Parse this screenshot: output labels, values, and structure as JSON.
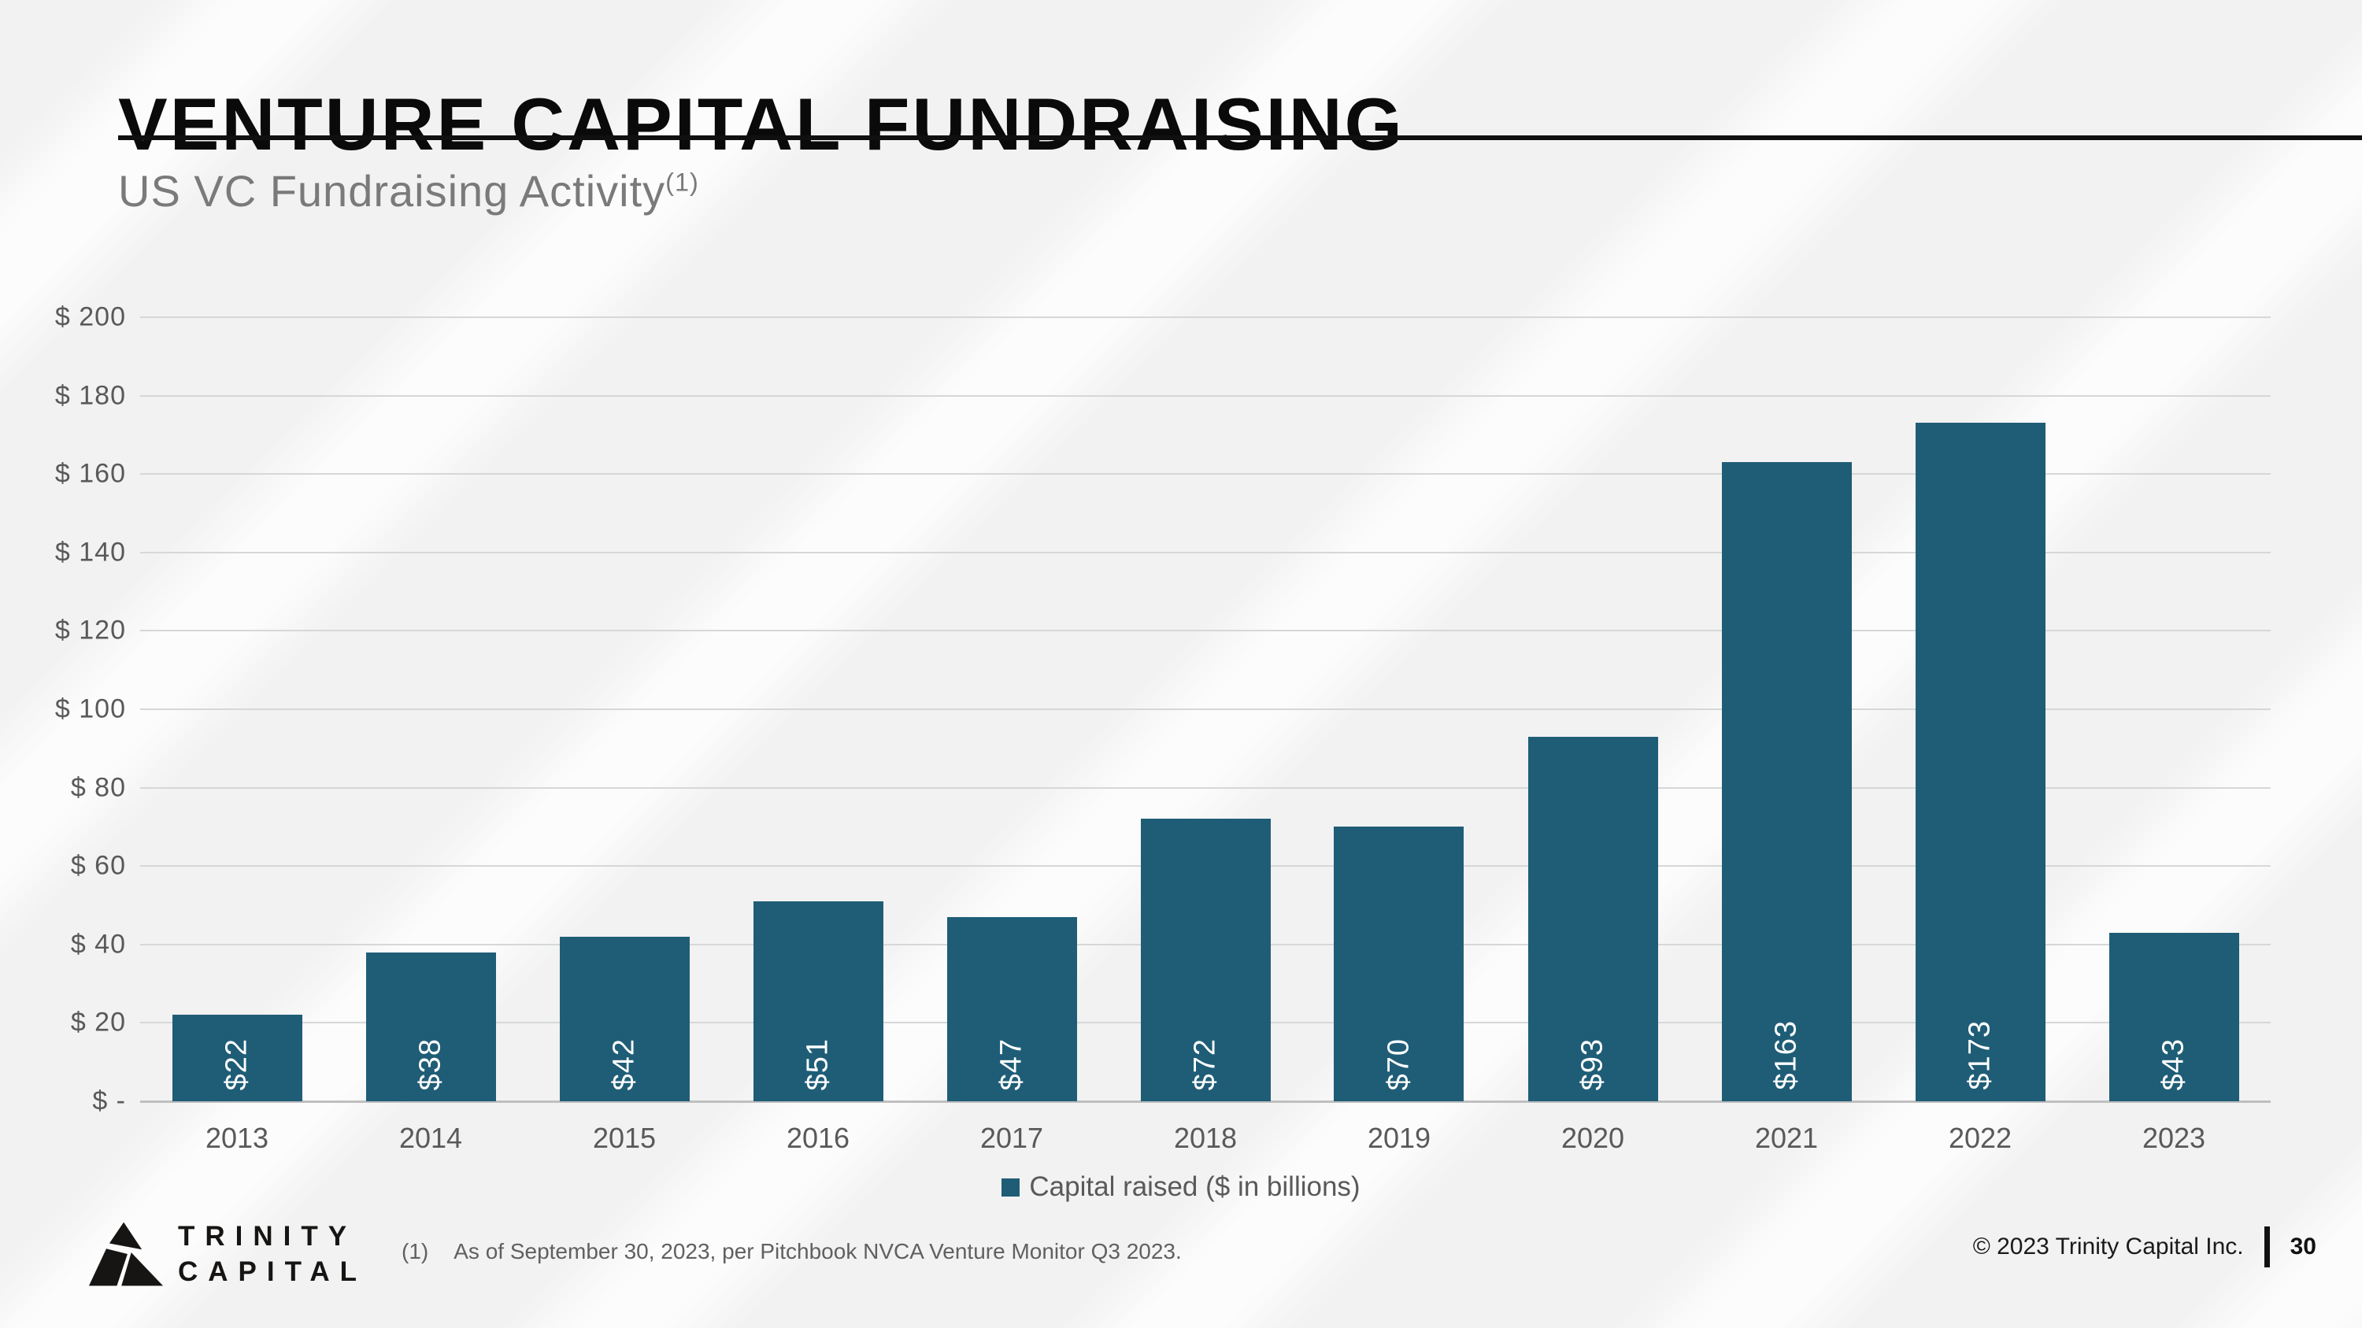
{
  "header": {
    "title": "VENTURE CAPITAL FUNDRAISING",
    "subtitle": "US VC Fundraising Activity",
    "subtitle_sup": "(1)"
  },
  "chart_data": {
    "type": "bar",
    "title": "US VC Fundraising Activity",
    "categories": [
      "2013",
      "2014",
      "2015",
      "2016",
      "2017",
      "2018",
      "2019",
      "2020",
      "2021",
      "2022",
      "2023"
    ],
    "values": [
      22,
      38,
      42,
      51,
      47,
      72,
      70,
      93,
      163,
      173,
      43
    ],
    "bar_labels": [
      "$22",
      "$38",
      "$42",
      "$51",
      "$47",
      "$72",
      "$70",
      "$93",
      "$163",
      "$173",
      "$43"
    ],
    "y_tick_values": [
      0,
      20,
      40,
      60,
      80,
      100,
      120,
      140,
      160,
      180,
      200
    ],
    "y_tick_labels": [
      "$ -",
      "$ 20",
      "$ 40",
      "$ 60",
      "$ 80",
      "$ 100",
      "$ 120",
      "$ 140",
      "$ 160",
      "$ 180",
      "$ 200"
    ],
    "ylim": [
      0,
      200
    ],
    "grid": true,
    "xlabel": "",
    "ylabel": "",
    "legend": "Capital raised ($ in billions)",
    "legend_position": "bottom-center",
    "bar_color": "#1f5d77",
    "bar_label_color": "#ffffff"
  },
  "footnote": {
    "marker": "(1)",
    "text": "As of September 30, 2023, per Pitchbook NVCA Venture Monitor Q3 2023."
  },
  "logo": {
    "line1": "TRINITY",
    "line2": "CAPITAL"
  },
  "footer": {
    "copyright": "© 2023 Trinity Capital Inc.",
    "page_number": "30"
  }
}
